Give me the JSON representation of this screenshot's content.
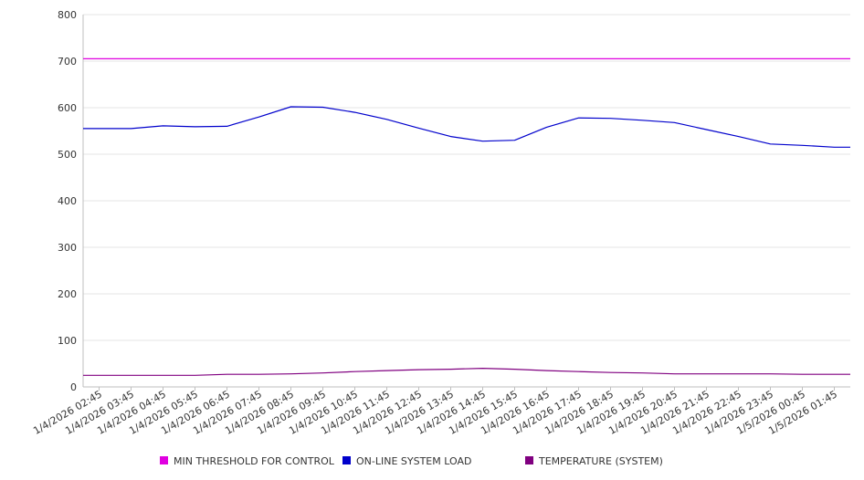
{
  "chart_data": {
    "type": "line",
    "title": "",
    "xlabel": "",
    "ylabel": "",
    "ylim": [
      0,
      800
    ],
    "yticks": [
      0,
      100,
      200,
      300,
      400,
      500,
      600,
      700,
      800
    ],
    "grid": true,
    "legend_position": "bottom",
    "x": [
      "1/4/2026 02:45",
      "1/4/2026 03:45",
      "1/4/2026 04:45",
      "1/4/2026 05:45",
      "1/4/2026 06:45",
      "1/4/2026 07:45",
      "1/4/2026 08:45",
      "1/4/2026 09:45",
      "1/4/2026 10:45",
      "1/4/2026 11:45",
      "1/4/2026 12:45",
      "1/4/2026 13:45",
      "1/4/2026 14:45",
      "1/4/2026 15:45",
      "1/4/2026 16:45",
      "1/4/2026 17:45",
      "1/4/2026 18:45",
      "1/4/2026 19:45",
      "1/4/2026 20:45",
      "1/4/2026 21:45",
      "1/4/2026 22:45",
      "1/4/2026 23:45",
      "1/5/2026 00:45",
      "1/5/2026 01:45"
    ],
    "series": [
      {
        "name": "MIN THRESHOLD FOR CONTROL",
        "color": "#e000e0",
        "values": [
          705,
          705,
          705,
          705,
          705,
          705,
          705,
          705,
          705,
          705,
          705,
          705,
          705,
          705,
          705,
          705,
          705,
          705,
          705,
          705,
          705,
          705,
          705,
          705
        ]
      },
      {
        "name": "ON-LINE SYSTEM LOAD",
        "color": "#0000cc",
        "values": [
          555,
          555,
          561,
          559,
          560,
          580,
          602,
          601,
          590,
          575,
          556,
          538,
          528,
          530,
          558,
          578,
          577,
          573,
          568,
          553,
          538,
          522,
          519,
          515
        ]
      },
      {
        "name": "TEMPERATURE (SYSTEM)",
        "color": "#800080",
        "values": [
          25,
          25,
          25,
          25,
          27,
          27,
          28,
          30,
          33,
          35,
          37,
          38,
          40,
          38,
          35,
          33,
          31,
          30,
          28,
          28,
          28,
          28,
          27,
          27
        ]
      }
    ]
  }
}
